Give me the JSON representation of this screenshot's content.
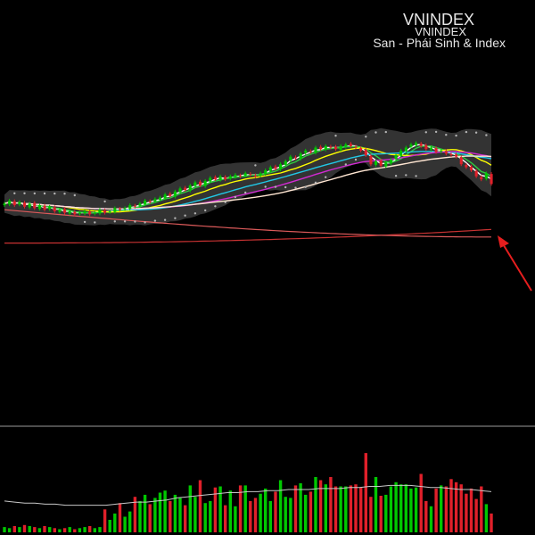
{
  "header": {
    "title": "VNINDEX",
    "symbol": "VNINDEX",
    "exchange": "San - Phái Sinh & Index"
  },
  "colors": {
    "background": "#000000",
    "up_candle": "#00c800",
    "down_candle": "#e0202a",
    "bollinger_band": "#3c3c3c",
    "parabolic_sar": "#b4b4b4",
    "ma_fast": "#ffffff",
    "ma_short": "#2ecc40",
    "ma_mid": "#ffff00",
    "ma_cyan": "#21c8e6",
    "ma_magenta": "#d22ad2",
    "ma_long": "#ffe6d2",
    "ma_red": "#c83232",
    "ma_pink": "#dc5a5a",
    "arrow": "#e61e1e",
    "volume_ma": "#c8c8c8"
  },
  "chart_data": {
    "type": "candlestick",
    "panels": [
      "price",
      "volume"
    ],
    "axis_labels_visible": false,
    "grid": false,
    "legend": "none",
    "indicators": [
      "bollinger-bands",
      "parabolic-sar",
      "moving-averages",
      "volume-ma"
    ],
    "price_ylim": [
      0,
      1
    ],
    "volume_ylim": [
      0,
      1
    ],
    "close": [
      0.48,
      0.5,
      0.47,
      0.49,
      0.46,
      0.48,
      0.45,
      0.47,
      0.44,
      0.46,
      0.43,
      0.44,
      0.42,
      0.43,
      0.41,
      0.42,
      0.43,
      0.41,
      0.42,
      0.44,
      0.42,
      0.43,
      0.45,
      0.44,
      0.45,
      0.47,
      0.46,
      0.48,
      0.5,
      0.49,
      0.51,
      0.52,
      0.54,
      0.53,
      0.56,
      0.58,
      0.57,
      0.6,
      0.62,
      0.6,
      0.63,
      0.65,
      0.64,
      0.66,
      0.64,
      0.66,
      0.67,
      0.66,
      0.68,
      0.67,
      0.66,
      0.68,
      0.7,
      0.72,
      0.71,
      0.74,
      0.76,
      0.79,
      0.78,
      0.81,
      0.83,
      0.82,
      0.85,
      0.84,
      0.86,
      0.85,
      0.84,
      0.86,
      0.87,
      0.86,
      0.85,
      0.83,
      0.8,
      0.74,
      0.76,
      0.73,
      0.75,
      0.77,
      0.8,
      0.83,
      0.85,
      0.87,
      0.88,
      0.86,
      0.84,
      0.85,
      0.82,
      0.83,
      0.81,
      0.8,
      0.79,
      0.74,
      0.72,
      0.7,
      0.66,
      0.64,
      0.68,
      0.61
    ],
    "volume": [
      0.05,
      0.04,
      0.06,
      0.05,
      0.07,
      0.06,
      0.05,
      0.04,
      0.06,
      0.05,
      0.04,
      0.03,
      0.04,
      0.05,
      0.03,
      0.04,
      0.05,
      0.06,
      0.04,
      0.05,
      0.22,
      0.12,
      0.18,
      0.28,
      0.15,
      0.2,
      0.34,
      0.3,
      0.36,
      0.27,
      0.33,
      0.38,
      0.4,
      0.3,
      0.36,
      0.33,
      0.26,
      0.45,
      0.34,
      0.5,
      0.28,
      0.3,
      0.43,
      0.44,
      0.26,
      0.4,
      0.25,
      0.45,
      0.45,
      0.3,
      0.33,
      0.37,
      0.42,
      0.3,
      0.39,
      0.5,
      0.34,
      0.33,
      0.45,
      0.47,
      0.36,
      0.39,
      0.53,
      0.5,
      0.46,
      0.53,
      0.44,
      0.44,
      0.44,
      0.45,
      0.46,
      0.43,
      0.76,
      0.34,
      0.53,
      0.35,
      0.36,
      0.44,
      0.48,
      0.46,
      0.46,
      0.42,
      0.43,
      0.56,
      0.3,
      0.25,
      0.42,
      0.45,
      0.44,
      0.51,
      0.48,
      0.46,
      0.37,
      0.42,
      0.32,
      0.44,
      0.27,
      0.18
    ],
    "volume_ma": [
      0.3,
      0.29,
      0.28,
      0.28,
      0.27,
      0.27,
      0.26,
      0.26,
      0.26,
      0.26,
      0.26,
      0.27,
      0.28,
      0.29,
      0.29,
      0.3,
      0.31,
      0.33,
      0.34,
      0.35,
      0.36,
      0.37,
      0.38,
      0.38,
      0.39,
      0.39,
      0.4,
      0.4,
      0.41,
      0.41,
      0.41,
      0.42,
      0.42,
      0.42,
      0.43,
      0.43,
      0.44,
      0.44,
      0.45,
      0.45,
      0.45,
      0.44,
      0.43,
      0.43,
      0.42,
      0.41,
      0.41,
      0.4,
      0.39
    ]
  }
}
